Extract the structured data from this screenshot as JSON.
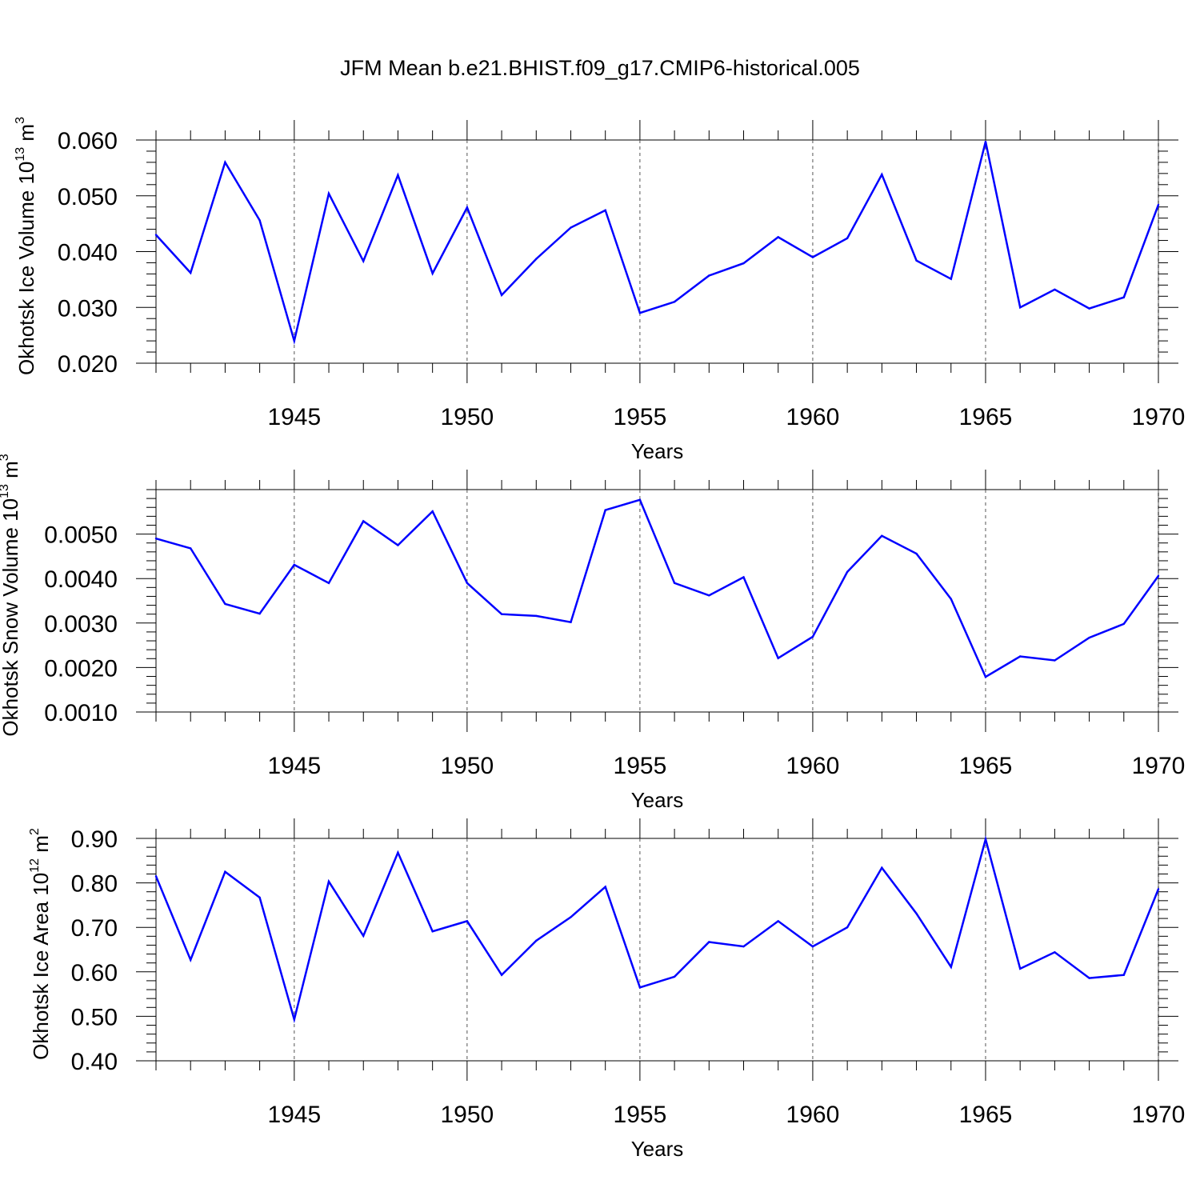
{
  "figure": {
    "title": "JFM Mean b.e21.BHIST.f09_g17.CMIP6-historical.005",
    "line_color": "#0000ff"
  },
  "chart_data": [
    {
      "type": "line",
      "ylabel_main": "Okhotsk Ice Volume 10",
      "ylabel_exp": "13",
      "ylabel_unit": " m",
      "ylabel_unit_exp": "3",
      "xlabel": "Years",
      "xlim": [
        1941,
        1970
      ],
      "ylim": [
        0.02,
        0.06
      ],
      "yticks": [
        0.02,
        0.03,
        0.04,
        0.05,
        0.06
      ],
      "ytick_labels": [
        "0.020",
        "0.030",
        "0.040",
        "0.050",
        "0.060"
      ],
      "xticks": [
        1945,
        1950,
        1955,
        1960,
        1965,
        1970
      ],
      "xtick_labels": [
        "1945",
        "1950",
        "1955",
        "1960",
        "1965",
        "1970"
      ],
      "grid": "vertical dashed at major x ticks",
      "x": [
        1941,
        1942,
        1943,
        1944,
        1945,
        1946,
        1947,
        1948,
        1949,
        1950,
        1951,
        1952,
        1953,
        1954,
        1955,
        1956,
        1957,
        1958,
        1959,
        1960,
        1961,
        1962,
        1963,
        1964,
        1965,
        1966,
        1967,
        1968,
        1969,
        1970
      ],
      "values": [
        0.043,
        0.0362,
        0.056,
        0.0456,
        0.024,
        0.0504,
        0.0383,
        0.0537,
        0.0361,
        0.0479,
        0.0322,
        0.0387,
        0.0443,
        0.0474,
        0.029,
        0.031,
        0.0357,
        0.0379,
        0.0426,
        0.039,
        0.0424,
        0.0538,
        0.0384,
        0.0351,
        0.0597,
        0.03,
        0.0332,
        0.0298,
        0.0318,
        0.0484
      ]
    },
    {
      "type": "line",
      "ylabel_main": "Okhotsk Snow Volume 10",
      "ylabel_exp": "13",
      "ylabel_unit": " m",
      "ylabel_unit_exp": "3",
      "xlabel": "Years",
      "xlim": [
        1941,
        1970
      ],
      "ylim": [
        0.001,
        0.006
      ],
      "yticks": [
        0.001,
        0.002,
        0.003,
        0.004,
        0.005
      ],
      "ytick_labels": [
        "0.0010",
        "0.0020",
        "0.0030",
        "0.0040",
        "0.0050"
      ],
      "xticks": [
        1945,
        1950,
        1955,
        1960,
        1965,
        1970
      ],
      "xtick_labels": [
        "1945",
        "1950",
        "1955",
        "1960",
        "1965",
        "1970"
      ],
      "grid": "vertical dashed at major x ticks",
      "x": [
        1941,
        1942,
        1943,
        1944,
        1945,
        1946,
        1947,
        1948,
        1949,
        1950,
        1951,
        1952,
        1953,
        1954,
        1955,
        1956,
        1957,
        1958,
        1959,
        1960,
        1961,
        1962,
        1963,
        1964,
        1965,
        1966,
        1967,
        1968,
        1969,
        1970
      ],
      "values": [
        0.0049,
        0.00468,
        0.00343,
        0.00321,
        0.00431,
        0.0039,
        0.00529,
        0.00475,
        0.00551,
        0.0039,
        0.0032,
        0.00316,
        0.00302,
        0.00554,
        0.00577,
        0.0039,
        0.00362,
        0.00403,
        0.00221,
        0.00269,
        0.00415,
        0.00496,
        0.00456,
        0.00354,
        0.00179,
        0.00225,
        0.00216,
        0.00267,
        0.00298,
        0.00406
      ]
    },
    {
      "type": "line",
      "ylabel_main": "Okhotsk Ice Area 10",
      "ylabel_exp": "12",
      "ylabel_unit": " m",
      "ylabel_unit_exp": "2",
      "xlabel": "Years",
      "xlim": [
        1941,
        1970
      ],
      "ylim": [
        0.4,
        0.9
      ],
      "yticks": [
        0.4,
        0.5,
        0.6,
        0.7,
        0.8,
        0.9
      ],
      "ytick_labels": [
        "0.40",
        "0.50",
        "0.60",
        "0.70",
        "0.80",
        "0.90"
      ],
      "xticks": [
        1945,
        1950,
        1955,
        1960,
        1965,
        1970
      ],
      "xtick_labels": [
        "1945",
        "1950",
        "1955",
        "1960",
        "1965",
        "1970"
      ],
      "grid": "vertical dashed at major x ticks",
      "x": [
        1941,
        1942,
        1943,
        1944,
        1945,
        1946,
        1947,
        1948,
        1949,
        1950,
        1951,
        1952,
        1953,
        1954,
        1955,
        1956,
        1957,
        1958,
        1959,
        1960,
        1961,
        1962,
        1963,
        1964,
        1965,
        1966,
        1967,
        1968,
        1969,
        1970
      ],
      "values": [
        0.815,
        0.627,
        0.825,
        0.767,
        0.493,
        0.803,
        0.681,
        0.868,
        0.691,
        0.714,
        0.593,
        0.67,
        0.723,
        0.791,
        0.565,
        0.589,
        0.667,
        0.657,
        0.714,
        0.657,
        0.7,
        0.834,
        0.731,
        0.611,
        0.898,
        0.607,
        0.644,
        0.586,
        0.593,
        0.786
      ]
    }
  ]
}
